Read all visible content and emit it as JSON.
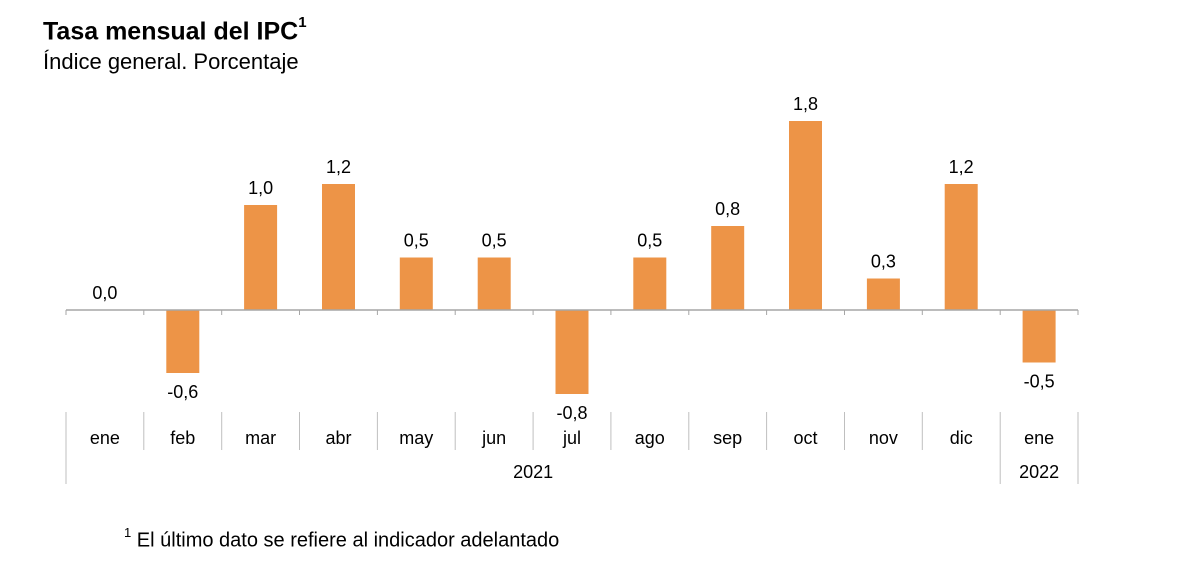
{
  "chart_data": {
    "type": "bar",
    "title": "Tasa mensual del IPC",
    "title_superscript": "1",
    "subtitle": "Índice general. Porcentaje",
    "categories": [
      "ene",
      "feb",
      "mar",
      "abr",
      "may",
      "jun",
      "jul",
      "ago",
      "sep",
      "oct",
      "nov",
      "dic",
      "ene"
    ],
    "values": [
      0.0,
      -0.6,
      1.0,
      1.2,
      0.5,
      0.5,
      -0.8,
      0.5,
      0.8,
      1.8,
      0.3,
      1.2,
      -0.5
    ],
    "value_labels": [
      "0,0",
      "-0,6",
      "1,0",
      "1,2",
      "0,5",
      "0,5",
      "-0,8",
      "0,5",
      "0,8",
      "1,8",
      "0,3",
      "1,2",
      "-0,5"
    ],
    "year_groups": [
      {
        "label": "2021",
        "start": 0,
        "end": 11
      },
      {
        "label": "2022",
        "start": 12,
        "end": 12
      }
    ],
    "bar_color": "#ed9447",
    "xlabel": "",
    "ylabel": "",
    "ylim": [
      -0.8,
      1.8
    ],
    "grid": false,
    "legend": "none"
  },
  "footnote": {
    "marker": "1",
    "text": "El último dato se refiere al indicador adelantado"
  }
}
